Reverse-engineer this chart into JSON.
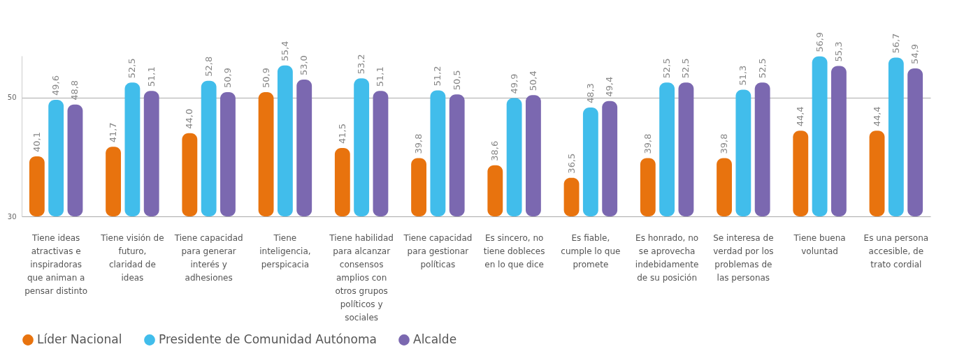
{
  "chart_data": {
    "type": "bar",
    "categories": [
      "Tiene ideas atractivas e inspiradoras que animan a pensar distinto",
      "Tiene visión de futuro, claridad de ideas",
      "Tiene capacidad para generar interés y adhesiones",
      "Tiene inteligencia, perspicacia",
      "Tiene habilidad para alcanzar consensos amplios con otros grupos políticos y sociales",
      "Tiene capacidad para gestionar políticas",
      "Es sincero, no tiene dobleces en lo que dice",
      "Es fiable, cumple lo que promete",
      "Es honrado, no se aprovecha indebidamente de su posición",
      "Se interesa de verdad por los problemas de las personas",
      "Tiene buena voluntad",
      "Es una persona accesible, de trato cordial"
    ],
    "series": [
      {
        "name": "Líder Nacional",
        "color": "#e8730e",
        "values": [
          40.1,
          41.7,
          44.0,
          50.9,
          41.5,
          39.8,
          38.6,
          36.5,
          39.8,
          39.8,
          44.4,
          44.4
        ],
        "value_labels": [
          "40,1",
          "41,7",
          "44,0",
          "50,9",
          "41,5",
          "39,8",
          "38,6",
          "36,5",
          "39,8",
          "39,8",
          "44,4",
          "44,4"
        ]
      },
      {
        "name": "Presidente de Comunidad Autónoma",
        "color": "#41bdeb",
        "values": [
          49.6,
          52.5,
          52.8,
          55.4,
          53.2,
          51.2,
          49.9,
          48.3,
          52.5,
          51.3,
          56.9,
          56.7
        ],
        "value_labels": [
          "49,6",
          "52,5",
          "52,8",
          "55,4",
          "53,2",
          "51,2",
          "49,9",
          "48,3",
          "52,5",
          "51,3",
          "56,9",
          "56,7"
        ]
      },
      {
        "name": "Alcalde",
        "color": "#7b68b0",
        "values": [
          48.8,
          51.1,
          50.9,
          53.0,
          51.1,
          50.5,
          50.4,
          49.4,
          52.5,
          52.5,
          55.3,
          54.9
        ],
        "value_labels": [
          "48,8",
          "51,1",
          "50,9",
          "53,0",
          "51,1",
          "50,5",
          "50,4",
          "49,4",
          "52,5",
          "52,5",
          "55,3",
          "54,9"
        ]
      }
    ],
    "ylim": [
      30,
      57
    ],
    "yticks": [
      30,
      50
    ],
    "grid": "y",
    "legend": "bottom"
  }
}
